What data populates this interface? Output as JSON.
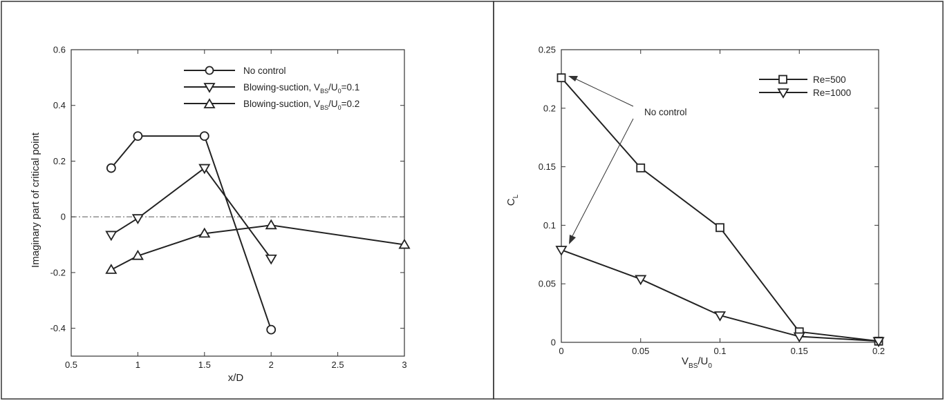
{
  "chart_data": [
    {
      "type": "line",
      "xlabel": "x/D",
      "ylabel": "Imaginary part of critical point",
      "xlim": [
        0.5,
        3
      ],
      "ylim": [
        -0.5,
        0.6
      ],
      "xticks": [
        "0.5",
        "1",
        "1.5",
        "2",
        "2.5",
        "3"
      ],
      "yticks": [
        "-0.4",
        "-0.2",
        "0",
        "0.2",
        "0.4",
        "0.6"
      ],
      "reference_line_y": 0,
      "legend_position": "top-right",
      "series": [
        {
          "name": "No control",
          "label_main": "No control",
          "label_sub": "",
          "label_rest": "",
          "marker": "circle",
          "x": [
            0.8,
            1,
            1.5,
            2
          ],
          "values": [
            0.175,
            0.29,
            0.29,
            -0.405
          ]
        },
        {
          "name": "Blowing-suction, V_BS/U_0=0.1",
          "label_main": "Blowing-suction, V",
          "label_sub": "BS",
          "label_mid": "/U",
          "label_sub2": "0",
          "label_rest": "=0.1",
          "marker": "triangle-down",
          "x": [
            0.8,
            1,
            1.5,
            2
          ],
          "values": [
            -0.065,
            -0.005,
            0.175,
            -0.15
          ]
        },
        {
          "name": "Blowing-suction, V_BS/U_0=0.2",
          "label_main": "Blowing-suction, V",
          "label_sub": "BS",
          "label_mid": "/U",
          "label_sub2": "0",
          "label_rest": "=0.2",
          "marker": "triangle-up",
          "x": [
            0.8,
            1,
            1.5,
            2,
            3
          ],
          "values": [
            -0.19,
            -0.14,
            -0.06,
            -0.03,
            -0.1
          ]
        }
      ]
    },
    {
      "type": "line",
      "xlabel_main": "V",
      "xlabel_sub": "BS",
      "xlabel_mid": "/U",
      "xlabel_sub2": "0",
      "ylabel_main": "C",
      "ylabel_sub": "L",
      "xlim": [
        0,
        0.2
      ],
      "ylim": [
        0,
        0.25
      ],
      "xticks": [
        "0",
        "0.05",
        "0.1",
        "0.15",
        "0.2"
      ],
      "yticks": [
        "0",
        "0.05",
        "0.1",
        "0.15",
        "0.2",
        "0.25"
      ],
      "legend_position": "top-right",
      "annotation": "No control",
      "series": [
        {
          "name": "Re=500",
          "marker": "square",
          "x": [
            0,
            0.05,
            0.1,
            0.15,
            0.2
          ],
          "values": [
            0.226,
            0.149,
            0.098,
            0.009,
            0.001
          ]
        },
        {
          "name": "Re=1000",
          "marker": "triangle-down",
          "x": [
            0,
            0.05,
            0.1,
            0.15,
            0.2
          ],
          "values": [
            0.079,
            0.054,
            0.023,
            0.005,
            0.001
          ]
        }
      ]
    }
  ]
}
